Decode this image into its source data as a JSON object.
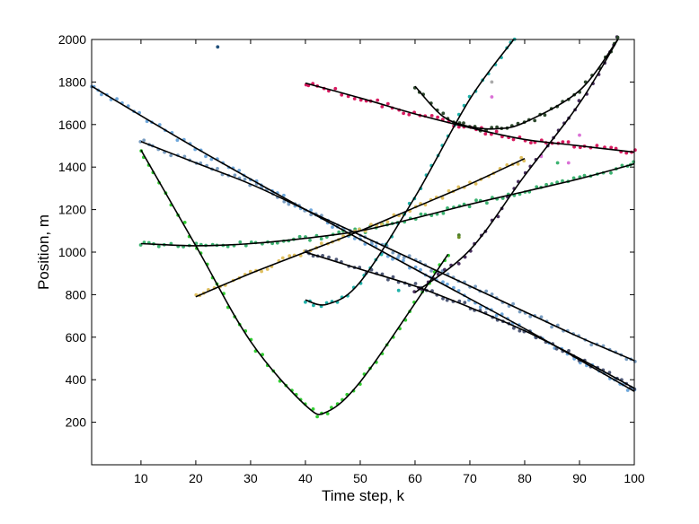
{
  "chart_data": {
    "type": "scatter",
    "title": "",
    "xlabel": "Time step, k",
    "ylabel": "Position, m",
    "xlim": [
      1,
      100
    ],
    "ylim": [
      0,
      2000
    ],
    "xticks": [
      10,
      20,
      30,
      40,
      50,
      60,
      70,
      80,
      90,
      100
    ],
    "yticks": [
      200,
      400,
      600,
      800,
      1000,
      1200,
      1400,
      1600,
      1800,
      2000
    ],
    "grid": false,
    "legend": "none",
    "fit_color": "#000000",
    "series": [
      {
        "color": "#6fa8dc",
        "x": [
          1,
          20,
          40,
          60,
          80,
          100
        ],
        "y": [
          1780,
          1490,
          1200,
          920,
          640,
          345
        ]
      },
      {
        "color": "#7a9ec2",
        "x": [
          10,
          20,
          30,
          40,
          50,
          60,
          70,
          80,
          90,
          100
        ],
        "y": [
          1520,
          1420,
          1320,
          1200,
          1080,
          960,
          840,
          720,
          600,
          490
        ]
      },
      {
        "color": "#3cb371",
        "x": [
          10,
          20,
          30,
          40,
          50,
          60,
          70,
          80,
          90,
          100
        ],
        "y": [
          1040,
          1030,
          1040,
          1065,
          1100,
          1160,
          1225,
          1285,
          1345,
          1415
        ]
      },
      {
        "color": "#32cd32",
        "x": [
          10,
          20,
          30,
          40,
          44,
          50,
          60,
          66
        ],
        "y": [
          1480,
          1030,
          580,
          280,
          250,
          390,
          760,
          990
        ]
      },
      {
        "color": "#e0c060",
        "x": [
          20,
          30,
          40,
          50,
          60,
          70,
          80
        ],
        "y": [
          790,
          900,
          1000,
          1100,
          1210,
          1320,
          1440
        ]
      },
      {
        "color": "#d81b60",
        "x": [
          40,
          50,
          60,
          70,
          80,
          90,
          100
        ],
        "y": [
          1795,
          1725,
          1650,
          1585,
          1530,
          1500,
          1470
        ]
      },
      {
        "color": "#20b2aa",
        "x": [
          40,
          44,
          50,
          60,
          70,
          78
        ],
        "y": [
          775,
          755,
          860,
          1260,
          1720,
          2000
        ]
      },
      {
        "color": "#505a78",
        "x": [
          40,
          50,
          60,
          70,
          80,
          90,
          100
        ],
        "y": [
          1000,
          920,
          840,
          740,
          630,
          500,
          360
        ]
      },
      {
        "color": "#4a3060",
        "x": [
          60,
          70,
          80,
          90,
          97
        ],
        "y": [
          810,
          1010,
          1360,
          1700,
          2000
        ]
      },
      {
        "color": "#2e4a2e",
        "x": [
          60,
          65,
          70,
          75,
          80,
          90,
          97
        ],
        "y": [
          1780,
          1640,
          1590,
          1580,
          1610,
          1760,
          2000
        ]
      }
    ],
    "outliers": [
      {
        "x": 24,
        "y": 1965,
        "color": "#1f4e79"
      },
      {
        "x": 68,
        "y": 1080,
        "color": "#4b7b2b"
      },
      {
        "x": 68,
        "y": 1070,
        "color": "#6b8e23"
      },
      {
        "x": 74,
        "y": 1800,
        "color": "#aaaaaa"
      },
      {
        "x": 74,
        "y": 1730,
        "color": "#da70d6"
      },
      {
        "x": 83,
        "y": 1450,
        "color": "#da70d6"
      },
      {
        "x": 86,
        "y": 1420,
        "color": "#3cb371"
      },
      {
        "x": 88,
        "y": 1420,
        "color": "#da70d6"
      },
      {
        "x": 90,
        "y": 1550,
        "color": "#da70d6"
      },
      {
        "x": 57,
        "y": 820,
        "color": "#20b2aa"
      }
    ]
  }
}
